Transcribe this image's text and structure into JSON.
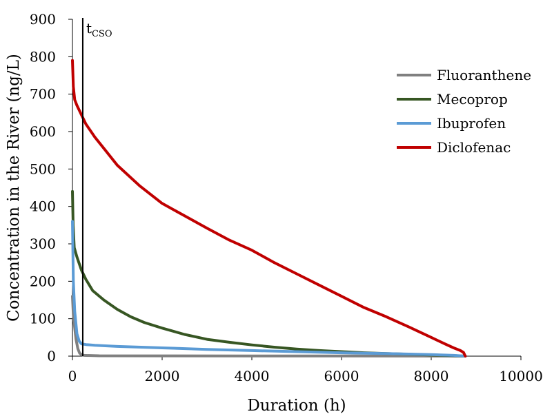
{
  "chart_data": {
    "type": "line",
    "title": "",
    "xlabel": "Duration (h)",
    "ylabel": "Concentration in the River (ng/L)",
    "xlim": [
      0,
      10000
    ],
    "ylim": [
      0,
      900
    ],
    "xticks": [
      0,
      2000,
      4000,
      6000,
      8000,
      10000
    ],
    "yticks": [
      0,
      100,
      200,
      300,
      400,
      500,
      600,
      700,
      800,
      900
    ],
    "grid": false,
    "legend_position": "right",
    "annotation": {
      "label_main": "t",
      "label_sub": "CSO",
      "x": 230
    },
    "series": [
      {
        "name": "Fluoranthene",
        "color": "#808080",
        "points": [
          [
            0,
            160
          ],
          [
            20,
            110
          ],
          [
            50,
            75
          ],
          [
            80,
            45
          ],
          [
            120,
            20
          ],
          [
            160,
            8
          ],
          [
            200,
            4
          ],
          [
            260,
            2
          ],
          [
            600,
            1
          ],
          [
            2000,
            0.8
          ],
          [
            4000,
            0.5
          ],
          [
            6000,
            0.3
          ],
          [
            8000,
            0.1
          ],
          [
            8760,
            0
          ]
        ]
      },
      {
        "name": "Mecoprop",
        "color": "#375623",
        "points": [
          [
            0,
            440
          ],
          [
            15,
            350
          ],
          [
            40,
            290
          ],
          [
            100,
            265
          ],
          [
            200,
            230
          ],
          [
            300,
            205
          ],
          [
            450,
            175
          ],
          [
            700,
            150
          ],
          [
            1000,
            125
          ],
          [
            1300,
            105
          ],
          [
            1600,
            90
          ],
          [
            2000,
            75
          ],
          [
            2500,
            58
          ],
          [
            3000,
            45
          ],
          [
            3500,
            37
          ],
          [
            4000,
            30
          ],
          [
            4500,
            24
          ],
          [
            5000,
            19
          ],
          [
            5500,
            15
          ],
          [
            6000,
            12
          ],
          [
            6500,
            9
          ],
          [
            7000,
            7
          ],
          [
            7500,
            5
          ],
          [
            8000,
            3
          ],
          [
            8500,
            1.5
          ],
          [
            8760,
            0
          ]
        ]
      },
      {
        "name": "Ibuprofen",
        "color": "#5B9BD5",
        "points": [
          [
            0,
            360
          ],
          [
            20,
            200
          ],
          [
            50,
            120
          ],
          [
            100,
            60
          ],
          [
            150,
            40
          ],
          [
            200,
            33
          ],
          [
            300,
            31
          ],
          [
            500,
            29
          ],
          [
            1000,
            26
          ],
          [
            2000,
            22
          ],
          [
            3000,
            18
          ],
          [
            4000,
            15
          ],
          [
            5000,
            12
          ],
          [
            6000,
            9
          ],
          [
            7000,
            7
          ],
          [
            8000,
            4
          ],
          [
            8500,
            2
          ],
          [
            8760,
            0
          ]
        ]
      },
      {
        "name": "Diclofenac",
        "color": "#C00000",
        "points": [
          [
            0,
            790
          ],
          [
            20,
            720
          ],
          [
            50,
            685
          ],
          [
            100,
            670
          ],
          [
            200,
            645
          ],
          [
            300,
            620
          ],
          [
            500,
            585
          ],
          [
            700,
            555
          ],
          [
            1000,
            510
          ],
          [
            1500,
            455
          ],
          [
            2000,
            408
          ],
          [
            2500,
            375
          ],
          [
            3000,
            342
          ],
          [
            3500,
            310
          ],
          [
            4000,
            283
          ],
          [
            4500,
            250
          ],
          [
            5000,
            220
          ],
          [
            5500,
            190
          ],
          [
            6000,
            160
          ],
          [
            6500,
            130
          ],
          [
            7000,
            105
          ],
          [
            7500,
            78
          ],
          [
            8000,
            50
          ],
          [
            8300,
            33
          ],
          [
            8500,
            22
          ],
          [
            8650,
            15
          ],
          [
            8720,
            10
          ],
          [
            8760,
            0
          ]
        ]
      }
    ]
  }
}
